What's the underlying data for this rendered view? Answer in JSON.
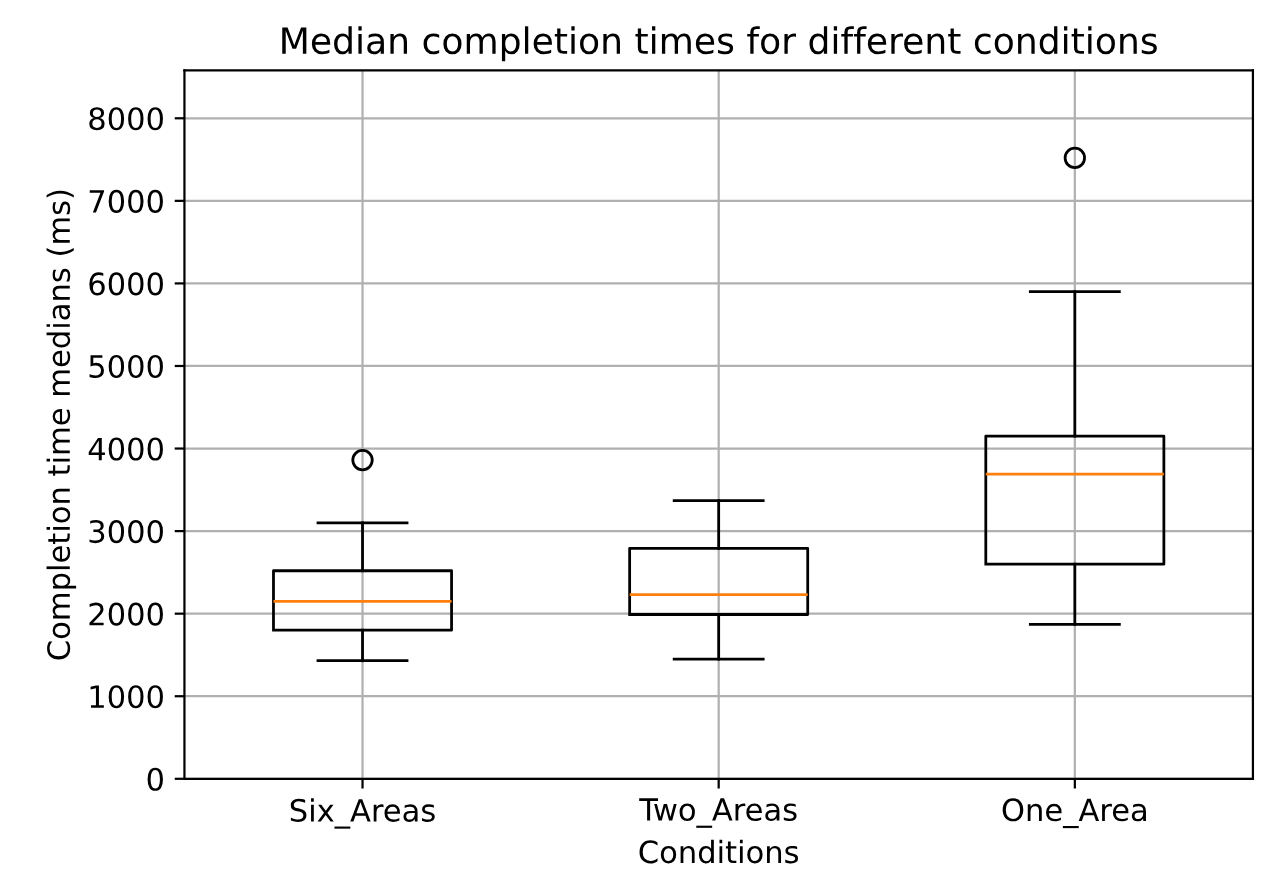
{
  "chart_data": {
    "type": "box",
    "title": "Median completion times for different conditions",
    "xlabel": "Conditions",
    "ylabel": "Completion time medians (ms)",
    "categories": [
      "Six_Areas",
      "Two_Areas",
      "One_Area"
    ],
    "boxes": [
      {
        "low": 1430,
        "q1": 1800,
        "median": 2150,
        "q3": 2520,
        "high": 3100,
        "outliers": [
          3860
        ]
      },
      {
        "low": 1450,
        "q1": 1990,
        "median": 2230,
        "q3": 2790,
        "high": 3370
      },
      {
        "low": 1870,
        "q1": 2600,
        "median": 3690,
        "q3": 4150,
        "high": 5900,
        "outliers": [
          7520
        ]
      }
    ],
    "color": "#000000",
    "ylim": [
      0,
      8580
    ],
    "yticks": [
      0,
      1000,
      2000,
      3000,
      4000,
      5000,
      6000,
      7000,
      8000
    ],
    "grid": true
  }
}
